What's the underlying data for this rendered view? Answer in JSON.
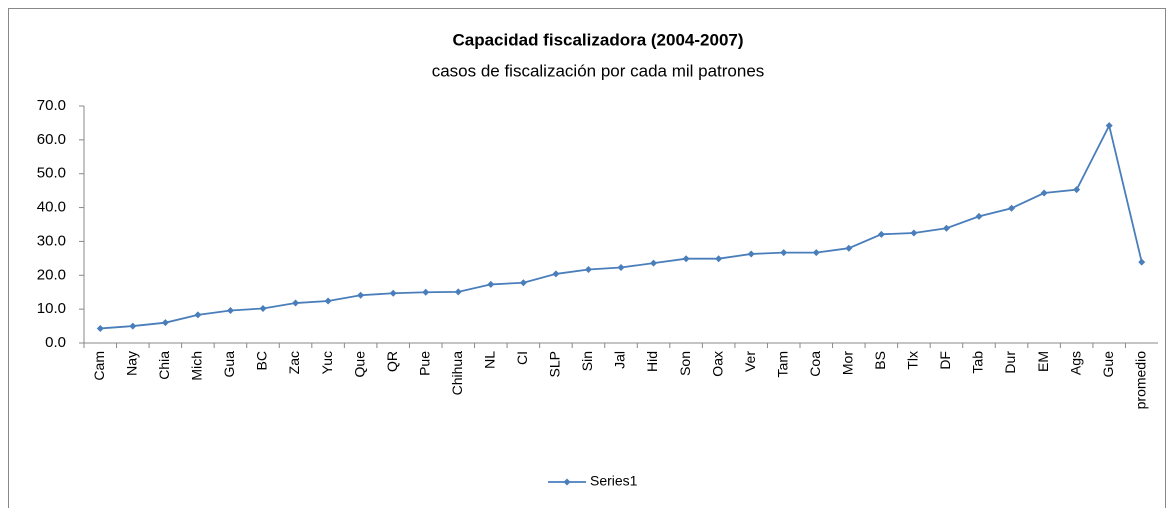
{
  "chart_data": {
    "type": "line",
    "title": "Capacidad fiscalizadora (2004-2007)",
    "subtitle": "casos de fiscalización por cada mil patrones",
    "categories": [
      "Cam",
      "Nay",
      "Chia",
      "Mich",
      "Gua",
      "BC",
      "Zac",
      "Yuc",
      "Que",
      "QR",
      "Pue",
      "Chihua",
      "NL",
      "CI",
      "SLP",
      "Sin",
      "Jal",
      "Hid",
      "Son",
      "Oax",
      "Ver",
      "Tam",
      "Coa",
      "Mor",
      "BS",
      "Tlx",
      "DF",
      "Tab",
      "Dur",
      "EM",
      "Ags",
      "Gue",
      "promedio"
    ],
    "series": [
      {
        "name": "Series1",
        "color": "#4a7ebb",
        "values": [
          4.3,
          5.0,
          6.0,
          8.3,
          9.6,
          10.2,
          11.8,
          12.4,
          14.1,
          14.7,
          15.0,
          15.1,
          17.3,
          17.8,
          20.4,
          21.7,
          22.3,
          23.6,
          24.9,
          24.9,
          26.3,
          26.7,
          26.7,
          28.0,
          32.1,
          32.5,
          33.9,
          37.4,
          39.8,
          44.3,
          45.3,
          64.2,
          23.9
        ]
      }
    ],
    "ylim": [
      0,
      70
    ],
    "yticks": [
      {
        "value": 0,
        "label": "0.0"
      },
      {
        "value": 10,
        "label": "10.0"
      },
      {
        "value": 20,
        "label": "20.0"
      },
      {
        "value": 30,
        "label": "30.0"
      },
      {
        "value": 40,
        "label": "40.0"
      },
      {
        "value": 50,
        "label": "50.0"
      },
      {
        "value": 60,
        "label": "60.0"
      },
      {
        "value": 70,
        "label": "70.0"
      }
    ],
    "grid": false,
    "legend": "bottom"
  }
}
